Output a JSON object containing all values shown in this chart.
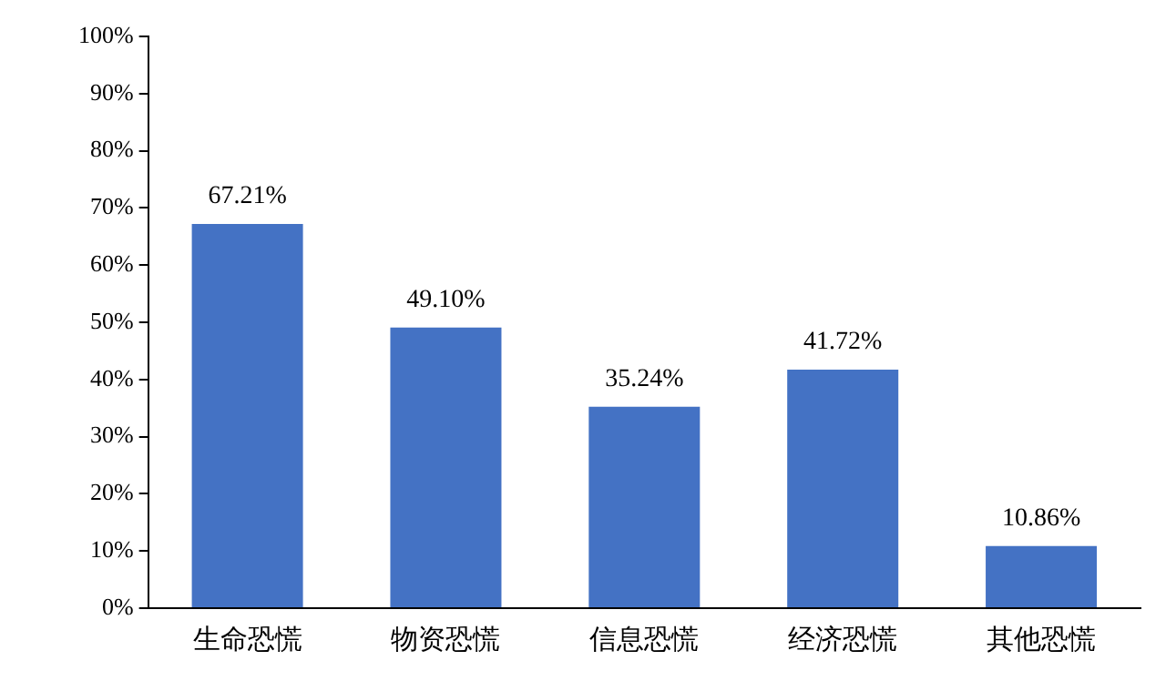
{
  "chart_data": {
    "type": "bar",
    "categories": [
      "生命恐慌",
      "物资恐慌",
      "信息恐慌",
      "经济恐慌",
      "其他恐慌"
    ],
    "values": [
      67.21,
      49.1,
      35.24,
      41.72,
      10.86
    ],
    "value_labels": [
      "67.21%",
      "49.10%",
      "35.24%",
      "41.72%",
      "10.86%"
    ],
    "color": "#4472c4",
    "ylim": [
      0,
      100
    ],
    "yticks": [
      {
        "value": 0,
        "label": "0%"
      },
      {
        "value": 10,
        "label": "10%"
      },
      {
        "value": 20,
        "label": "20%"
      },
      {
        "value": 30,
        "label": "30%"
      },
      {
        "value": 40,
        "label": "40%"
      },
      {
        "value": 50,
        "label": "50%"
      },
      {
        "value": 60,
        "label": "60%"
      },
      {
        "value": 70,
        "label": "70%"
      },
      {
        "value": 80,
        "label": "80%"
      },
      {
        "value": 90,
        "label": "90%"
      },
      {
        "value": 100,
        "label": "100%"
      }
    ],
    "grid": false,
    "legend": false
  }
}
